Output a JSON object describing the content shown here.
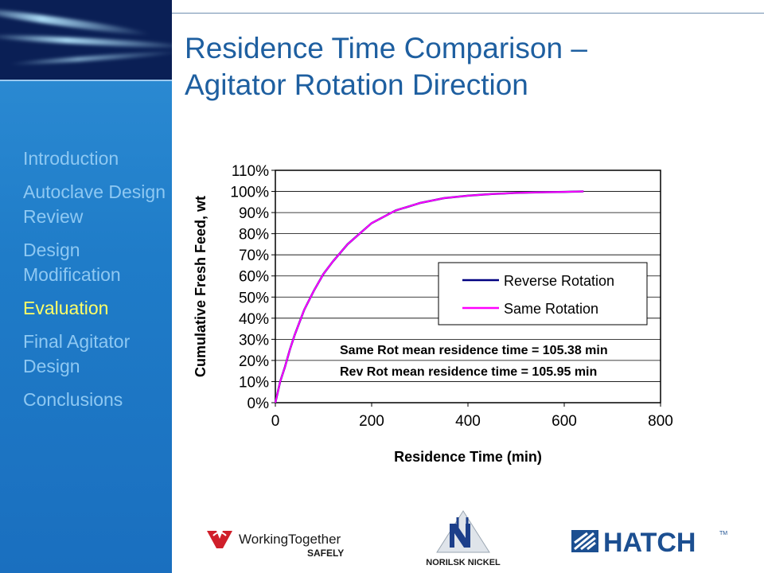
{
  "slide": {
    "title_line1": "Residence Time Comparison –",
    "title_line2": "Agitator Rotation Direction"
  },
  "nav": {
    "items": [
      {
        "label": "Introduction",
        "active": false
      },
      {
        "label": "Autoclave Design Review",
        "active": false
      },
      {
        "label": "Design Modification",
        "active": false
      },
      {
        "label": "Evaluation",
        "active": true
      },
      {
        "label": "Final Agitator Design",
        "active": false
      },
      {
        "label": "Conclusions",
        "active": false
      }
    ]
  },
  "colors": {
    "sidebar": "#1f7cc8",
    "nav_text": "#8ec8f2",
    "nav_active": "#ffff66",
    "title": "#1e5fa0",
    "reverse_series": "#000080",
    "same_series": "#ff00ff"
  },
  "chart_data": {
    "type": "line",
    "xlabel": "Residence Time (min)",
    "ylabel": "Cumulative Fresh Feed, wt",
    "xlim": [
      0,
      800
    ],
    "ylim": [
      0,
      110
    ],
    "x_ticks": [
      0,
      200,
      400,
      600,
      800
    ],
    "y_ticks": [
      0,
      10,
      20,
      30,
      40,
      50,
      60,
      70,
      80,
      90,
      100,
      110
    ],
    "y_tick_labels": [
      "0%",
      "10%",
      "20%",
      "30%",
      "40%",
      "50%",
      "60%",
      "70%",
      "80%",
      "90%",
      "100%",
      "110%"
    ],
    "grid": "horizontal",
    "legend_position": "center-right",
    "series": [
      {
        "name": "Reverse Rotation",
        "color": "#000080",
        "x": [
          0,
          10,
          20,
          30,
          40,
          50,
          60,
          80,
          100,
          120,
          150,
          180,
          200,
          250,
          300,
          350,
          400,
          450,
          500,
          550,
          600,
          640
        ],
        "y": [
          0,
          10,
          17,
          25,
          32,
          38,
          44,
          53,
          61,
          67,
          75,
          81,
          85,
          91,
          94.5,
          96.8,
          98,
          98.8,
          99.3,
          99.6,
          99.8,
          100
        ]
      },
      {
        "name": "Same Rotation",
        "color": "#ff00ff",
        "x": [
          0,
          10,
          20,
          30,
          40,
          50,
          60,
          80,
          100,
          120,
          150,
          180,
          200,
          250,
          300,
          350,
          400,
          450,
          500,
          550,
          600,
          640
        ],
        "y": [
          0,
          10,
          17,
          25,
          32,
          38,
          44,
          53,
          61,
          67,
          75,
          81,
          85,
          91,
          94.5,
          96.8,
          98,
          98.8,
          99.3,
          99.6,
          99.8,
          100
        ]
      }
    ],
    "annotations": [
      "Same Rot mean residence time =  105.38 min",
      "Rev Rot mean residence time   =  105.95 min"
    ]
  },
  "logos": {
    "working_together": "WorkingTogether",
    "safely": "SAFELY",
    "norilsk": "NORILSK NICKEL",
    "hatch": "HATCH",
    "hatch_tm": "TM"
  }
}
